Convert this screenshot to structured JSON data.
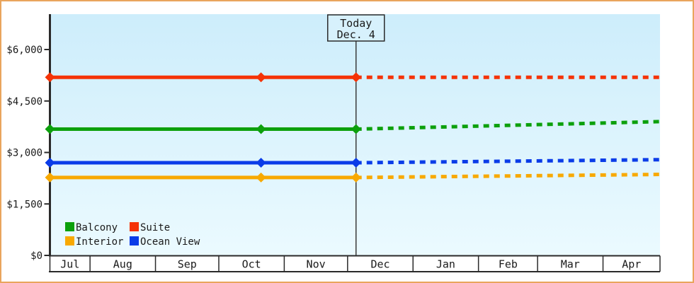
{
  "window": {
    "border_color": "#e9a55d",
    "background_color": "#ffffff"
  },
  "chart_data": {
    "type": "line",
    "description": "Cabin price history (solid) and projected prices (dotted) by cabin category",
    "months": [
      "Jul",
      "Aug",
      "Sep",
      "Oct",
      "Nov",
      "Dec",
      "Jan",
      "Feb",
      "Mar",
      "Apr"
    ],
    "timeline": {
      "month_days": [
        19,
        31,
        30,
        31,
        30,
        31,
        31,
        28,
        31,
        27
      ],
      "today_day_offset": 145,
      "marker_day_offsets": [
        0,
        100,
        145
      ]
    },
    "y_axis": {
      "tick_labels": [
        "$0",
        "$1,500",
        "$3,000",
        "$4,500",
        "$6,000"
      ],
      "tick_values": [
        0,
        1500,
        3000,
        4500,
        6000
      ],
      "max_value": 6000,
      "top_value_at_plot_top": 7000,
      "grid": false
    },
    "today": {
      "label": "Today",
      "date": "Dec. 4",
      "box_fill": "#d7f1fc"
    },
    "plot_background": {
      "top": "#cdedfb",
      "bottom": "#ebfaff"
    },
    "series": [
      {
        "name": "Balcony",
        "color": "#0ca00c",
        "history_value": 3680,
        "projected_value": 3900,
        "history_style": "solid",
        "projection_style": "dotted"
      },
      {
        "name": "Suite",
        "color": "#f53307",
        "history_value": 5190,
        "projected_value": 5190,
        "history_style": "solid",
        "projection_style": "dotted"
      },
      {
        "name": "Interior",
        "color": "#f8a900",
        "history_value": 2270,
        "projected_value": 2360,
        "history_style": "solid",
        "projection_style": "dotted"
      },
      {
        "name": "Ocean View",
        "color": "#0a3ce8",
        "history_value": 2700,
        "projected_value": 2790,
        "history_style": "solid",
        "projection_style": "dotted"
      }
    ],
    "legend": {
      "position": "bottom-left-inside",
      "rows": 2,
      "columns": 2
    }
  }
}
